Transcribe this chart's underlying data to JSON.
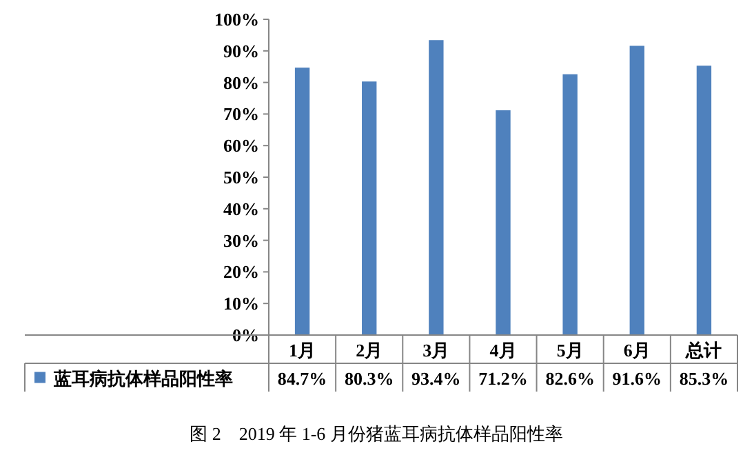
{
  "chart_data": {
    "type": "bar",
    "title": "图 2　2019 年 1-6 月份猪蓝耳病抗体样品阳性率",
    "categories": [
      "1月",
      "2月",
      "3月",
      "4月",
      "5月",
      "6月",
      "总计"
    ],
    "series": [
      {
        "name": "蓝耳病抗体样品阳性率",
        "color": "#4f81bd",
        "values": [
          84.7,
          80.3,
          93.4,
          71.2,
          82.6,
          91.6,
          85.3
        ],
        "value_labels": [
          "84.7%",
          "80.3%",
          "93.4%",
          "71.2%",
          "82.6%",
          "91.6%",
          "85.3%"
        ]
      }
    ],
    "ylim": [
      0,
      100
    ],
    "yticks": [
      {
        "value": 0,
        "label": "0%"
      },
      {
        "value": 10,
        "label": "10%"
      },
      {
        "value": 20,
        "label": "20%"
      },
      {
        "value": 30,
        "label": "30%"
      },
      {
        "value": 40,
        "label": "40%"
      },
      {
        "value": 50,
        "label": "50%"
      },
      {
        "value": 60,
        "label": "60%"
      },
      {
        "value": 70,
        "label": "70%"
      },
      {
        "value": 80,
        "label": "80%"
      },
      {
        "value": 90,
        "label": "90%"
      },
      {
        "value": 100,
        "label": "100%"
      }
    ],
    "grid": false,
    "legend": "bottom left"
  }
}
